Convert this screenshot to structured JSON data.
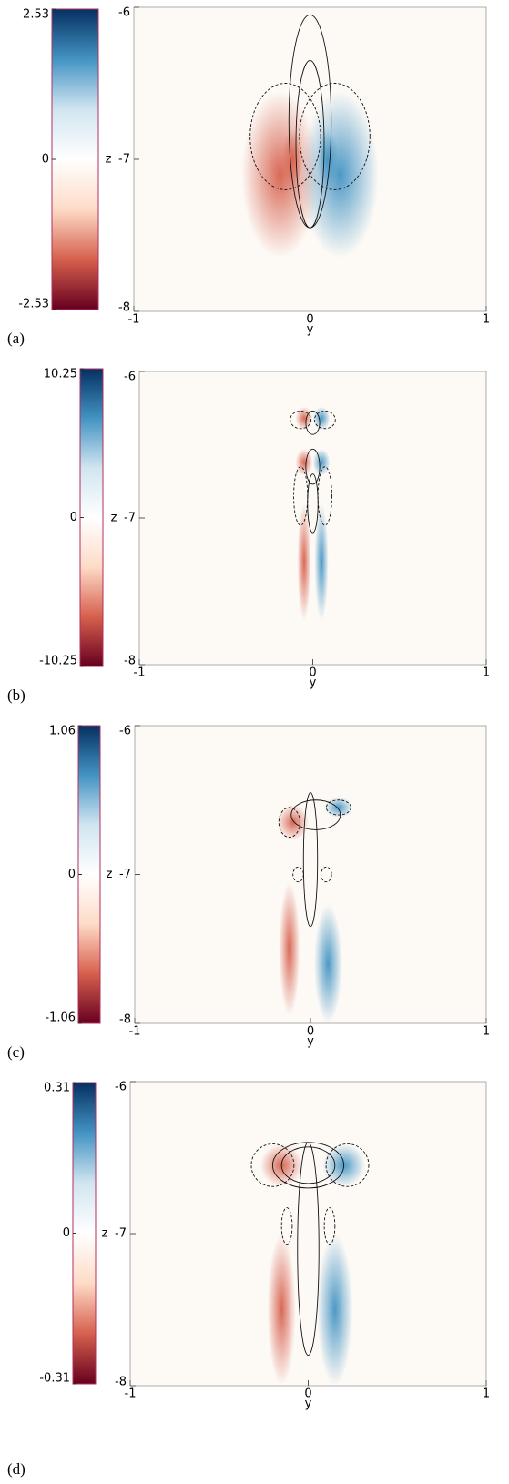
{
  "chart_data": [
    {
      "type": "heatmap",
      "label": "(a)",
      "xlabel": "y",
      "ylabel": "z",
      "xlim": [
        -1,
        1
      ],
      "xticks": [
        -1,
        0,
        1
      ],
      "ylim": [
        -8,
        -6
      ],
      "yticks": [
        -6,
        -7,
        -8
      ],
      "zlim": [
        -2.53,
        2.53
      ],
      "zticks": [
        2.53,
        0,
        -2.53
      ],
      "colors": [
        "#67001f",
        "#d6604d",
        "#fddbc7",
        "#ffffff",
        "#d1e5f0",
        "#4393c3",
        "#053061"
      ]
    },
    {
      "type": "heatmap",
      "label": "(b)",
      "xlabel": "y",
      "ylabel": "z",
      "xlim": [
        -1,
        1
      ],
      "xticks": [
        -1,
        0,
        1
      ],
      "ylim": [
        -8,
        -6
      ],
      "yticks": [
        -6,
        -7,
        -8
      ],
      "zlim": [
        -10.25,
        10.25
      ],
      "zticks": [
        10.25,
        0,
        -10.25
      ],
      "colors": [
        "#67001f",
        "#d6604d",
        "#fddbc7",
        "#ffffff",
        "#d1e5f0",
        "#4393c3",
        "#053061"
      ]
    },
    {
      "type": "heatmap",
      "label": "(c)",
      "xlabel": "y",
      "ylabel": "z",
      "xlim": [
        -1,
        1
      ],
      "xticks": [
        -1,
        0,
        1
      ],
      "ylim": [
        -8,
        -6
      ],
      "yticks": [
        -6,
        -7,
        -8
      ],
      "zlim": [
        -1.06,
        1.06
      ],
      "zticks": [
        1.06,
        0,
        -1.06
      ],
      "colors": [
        "#67001f",
        "#d6604d",
        "#fddbc7",
        "#ffffff",
        "#d1e5f0",
        "#4393c3",
        "#053061"
      ]
    },
    {
      "type": "heatmap",
      "label": "(d)",
      "xlabel": "y",
      "ylabel": "z",
      "xlim": [
        -1,
        1
      ],
      "xticks": [
        -1,
        0,
        1
      ],
      "ylim": [
        -8,
        -6
      ],
      "yticks": [
        -6,
        -7,
        -8
      ],
      "zlim": [
        -0.31,
        0.31
      ],
      "zticks": [
        0.31,
        0,
        -0.31
      ],
      "colors": [
        "#67001f",
        "#d6604d",
        "#fddbc7",
        "#ffffff",
        "#d1e5f0",
        "#4393c3",
        "#053061"
      ]
    }
  ]
}
